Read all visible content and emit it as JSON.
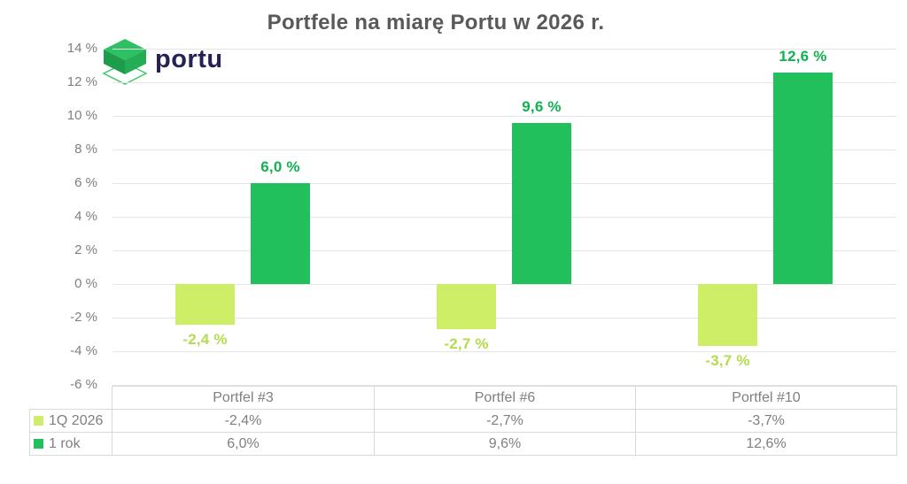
{
  "logo": {
    "text": "portu"
  },
  "colors": {
    "title_text": "#595959",
    "axis_text": "#7f7f7f",
    "gridline": "#e4e4e4",
    "table_border": "#d9d9d9",
    "logo_text": "#262153",
    "series_1q": "#cdee66",
    "series_1q_label": "#b2dd4c",
    "series_1rok": "#21c05c",
    "series_1rok_label": "#10b250"
  },
  "chart_data": {
    "type": "bar",
    "title": "Portfele na miarę Portu w 2026 r.",
    "categories": [
      "Portfel #3",
      "Portfel #6",
      "Portfel #10"
    ],
    "series": [
      {
        "name": "1Q 2026",
        "color": "#cdee66",
        "label_color": "#b2dd4c",
        "values": [
          -2.4,
          -2.7,
          -3.7
        ],
        "point_labels": [
          "-2,4 %",
          "-2,7 %",
          "-3,7 %"
        ],
        "table_values": [
          "-2,4%",
          "-2,7%",
          "-3,7%"
        ]
      },
      {
        "name": "1 rok",
        "color": "#21c05c",
        "label_color": "#10b250",
        "values": [
          6.0,
          9.6,
          12.6
        ],
        "point_labels": [
          "6,0 %",
          "9,6 %",
          "12,6 %"
        ],
        "table_values": [
          "6,0%",
          "9,6%",
          "12,6%"
        ]
      }
    ],
    "ylim": [
      -6,
      14
    ],
    "ytick_step": 2,
    "ytick_labels": [
      "14 %",
      "12 %",
      "10 %",
      "8 %",
      "6 %",
      "4 %",
      "2 %",
      "0 %",
      "-2 %",
      "-4 %",
      "-6 %"
    ],
    "grid": true,
    "legend_position": "table-left"
  }
}
